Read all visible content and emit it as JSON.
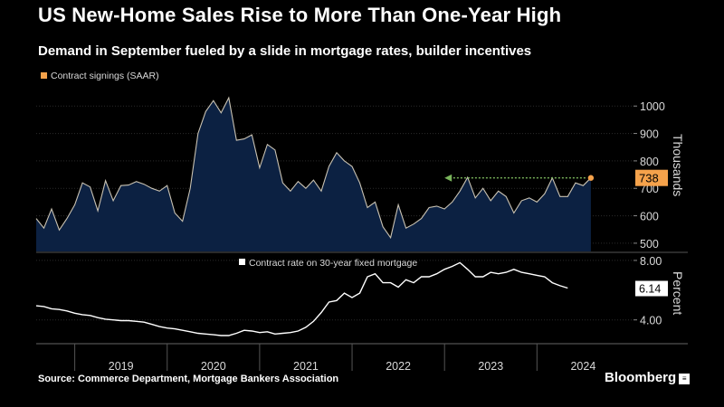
{
  "title": "US New-Home Sales Rise to More Than One-Year High",
  "subtitle": "Demand in September fueled by a slide in mortgage rates, builder incentives",
  "source": "Source: Commerce Department, Mortgage Bankers Association",
  "brand": "Bloomberg",
  "brand_icon": "bloomberg-terminal-icon",
  "colors": {
    "background": "#000000",
    "area_fill": "#0c2142",
    "area_line": "#c9c2b2",
    "highlight": "#f5a24b",
    "rate_line": "#ffffff",
    "arrow": "#7ab55c"
  },
  "chart_data": [
    {
      "type": "area",
      "legend": "Contract signings (SAAR)",
      "ylabel": "Thousands",
      "ylim": [
        470,
        1070
      ],
      "ticks": [
        {
          "value": 500,
          "label": "500"
        },
        {
          "value": 600,
          "label": "600"
        },
        {
          "value": 700,
          "label": "700"
        },
        {
          "value": 800,
          "label": "800"
        },
        {
          "value": 900,
          "label": "900"
        },
        {
          "value": 1000,
          "label": "1000"
        }
      ],
      "x_start": 2018.583,
      "x_step_months": 1,
      "values": [
        590,
        555,
        625,
        548,
        590,
        640,
        720,
        705,
        618,
        728,
        655,
        710,
        712,
        725,
        715,
        700,
        690,
        710,
        610,
        580,
        700,
        900,
        980,
        1020,
        975,
        1030,
        875,
        880,
        895,
        775,
        860,
        840,
        720,
        690,
        725,
        700,
        730,
        690,
        780,
        830,
        800,
        780,
        720,
        630,
        650,
        560,
        520,
        640,
        555,
        570,
        590,
        630,
        635,
        625,
        650,
        690,
        740,
        665,
        700,
        655,
        690,
        670,
        610,
        655,
        665,
        650,
        680,
        738,
        670,
        670,
        720,
        710,
        738
      ],
      "latest_label": "738",
      "latest_value": 738,
      "reference_arrow_from": 2023.0
    },
    {
      "type": "line",
      "legend": "Contract rate on 30-year fixed mortgage",
      "ylabel": "Percent",
      "ylim": [
        2.4,
        8.3
      ],
      "ticks": [
        {
          "value": 4.0,
          "label": "4.00"
        },
        {
          "value": 8.0,
          "label": "8.00"
        }
      ],
      "x_start": 2018.583,
      "x_step_months": 1,
      "values": [
        4.95,
        4.9,
        4.75,
        4.7,
        4.6,
        4.45,
        4.35,
        4.3,
        4.15,
        4.05,
        4.0,
        3.95,
        3.95,
        3.9,
        3.85,
        3.7,
        3.55,
        3.45,
        3.4,
        3.3,
        3.2,
        3.1,
        3.05,
        3.0,
        2.95,
        2.95,
        3.1,
        3.3,
        3.25,
        3.15,
        3.2,
        3.05,
        3.1,
        3.15,
        3.25,
        3.5,
        3.9,
        4.5,
        5.2,
        5.3,
        5.8,
        5.5,
        5.8,
        6.9,
        7.1,
        6.5,
        6.5,
        6.2,
        6.7,
        6.5,
        6.9,
        6.9,
        7.1,
        7.4,
        7.6,
        7.85,
        7.4,
        6.9,
        6.9,
        7.2,
        7.1,
        7.2,
        7.4,
        7.2,
        7.1,
        7.0,
        6.9,
        6.5,
        6.3,
        6.14
      ],
      "latest_label": "6.14",
      "latest_value": 6.14
    }
  ],
  "x_axis": {
    "range": [
      2018.583,
      2024.917
    ],
    "years": [
      {
        "label": "2019",
        "center": 2019.5
      },
      {
        "label": "2020",
        "center": 2020.5
      },
      {
        "label": "2021",
        "center": 2021.5
      },
      {
        "label": "2022",
        "center": 2022.5
      },
      {
        "label": "2023",
        "center": 2023.5
      },
      {
        "label": "2024",
        "center": 2024.5
      }
    ],
    "dividers": [
      2019,
      2020,
      2021,
      2022,
      2023,
      2024
    ]
  }
}
